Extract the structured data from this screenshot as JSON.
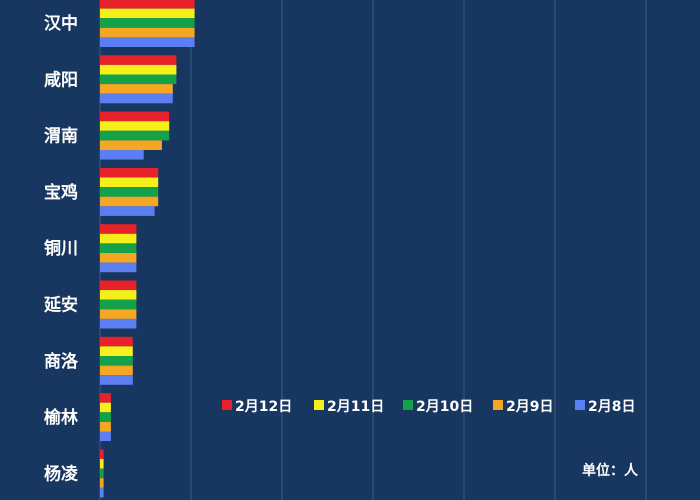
{
  "chart_data": {
    "type": "bar",
    "orientation": "horizontal",
    "categories": [
      "汉中",
      "咸阳",
      "渭南",
      "宝鸡",
      "铜川",
      "延安",
      "商洛",
      "榆林",
      "杨凌"
    ],
    "series": [
      {
        "name": "2月12日",
        "color": "#e8222a",
        "values": [
          26,
          21,
          19,
          16,
          10,
          10,
          9,
          3,
          1
        ]
      },
      {
        "name": "2月11日",
        "color": "#f5ef1a",
        "values": [
          26,
          21,
          19,
          16,
          10,
          10,
          9,
          3,
          1
        ]
      },
      {
        "name": "2月10日",
        "color": "#13a14a",
        "values": [
          26,
          21,
          19,
          16,
          10,
          10,
          9,
          3,
          1
        ]
      },
      {
        "name": "2月9日",
        "color": "#f5a623",
        "values": [
          26,
          20,
          17,
          16,
          10,
          10,
          9,
          3,
          1
        ]
      },
      {
        "name": "2月8日",
        "color": "#5b7ff0",
        "values": [
          26,
          20,
          12,
          15,
          10,
          10,
          9,
          3,
          1
        ]
      }
    ],
    "xlim": [
      0,
      150
    ],
    "x_gridlines": [
      0,
      25,
      50,
      75,
      100,
      125,
      150
    ],
    "grid": true,
    "legend_position": "bottom-right",
    "unit": "单位：人"
  }
}
